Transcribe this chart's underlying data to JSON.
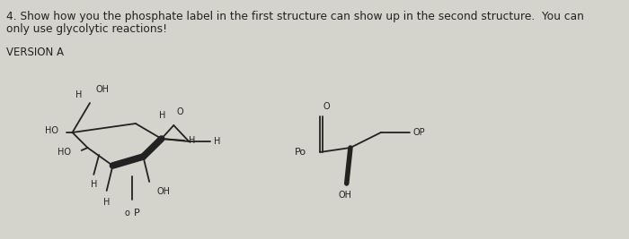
{
  "title_line1": "4. Show how you the phosphate label in the first structure can show up in the second structure.  You can",
  "title_line2": "only use glycolytic reactions!",
  "version_label": "VERSION A",
  "bg_color": "#d4d4cc",
  "text_color": "#222222",
  "line_color": "#222222",
  "title_fontsize": 8.8,
  "label_fontsize": 7.0,
  "small_fontsize": 6.8
}
